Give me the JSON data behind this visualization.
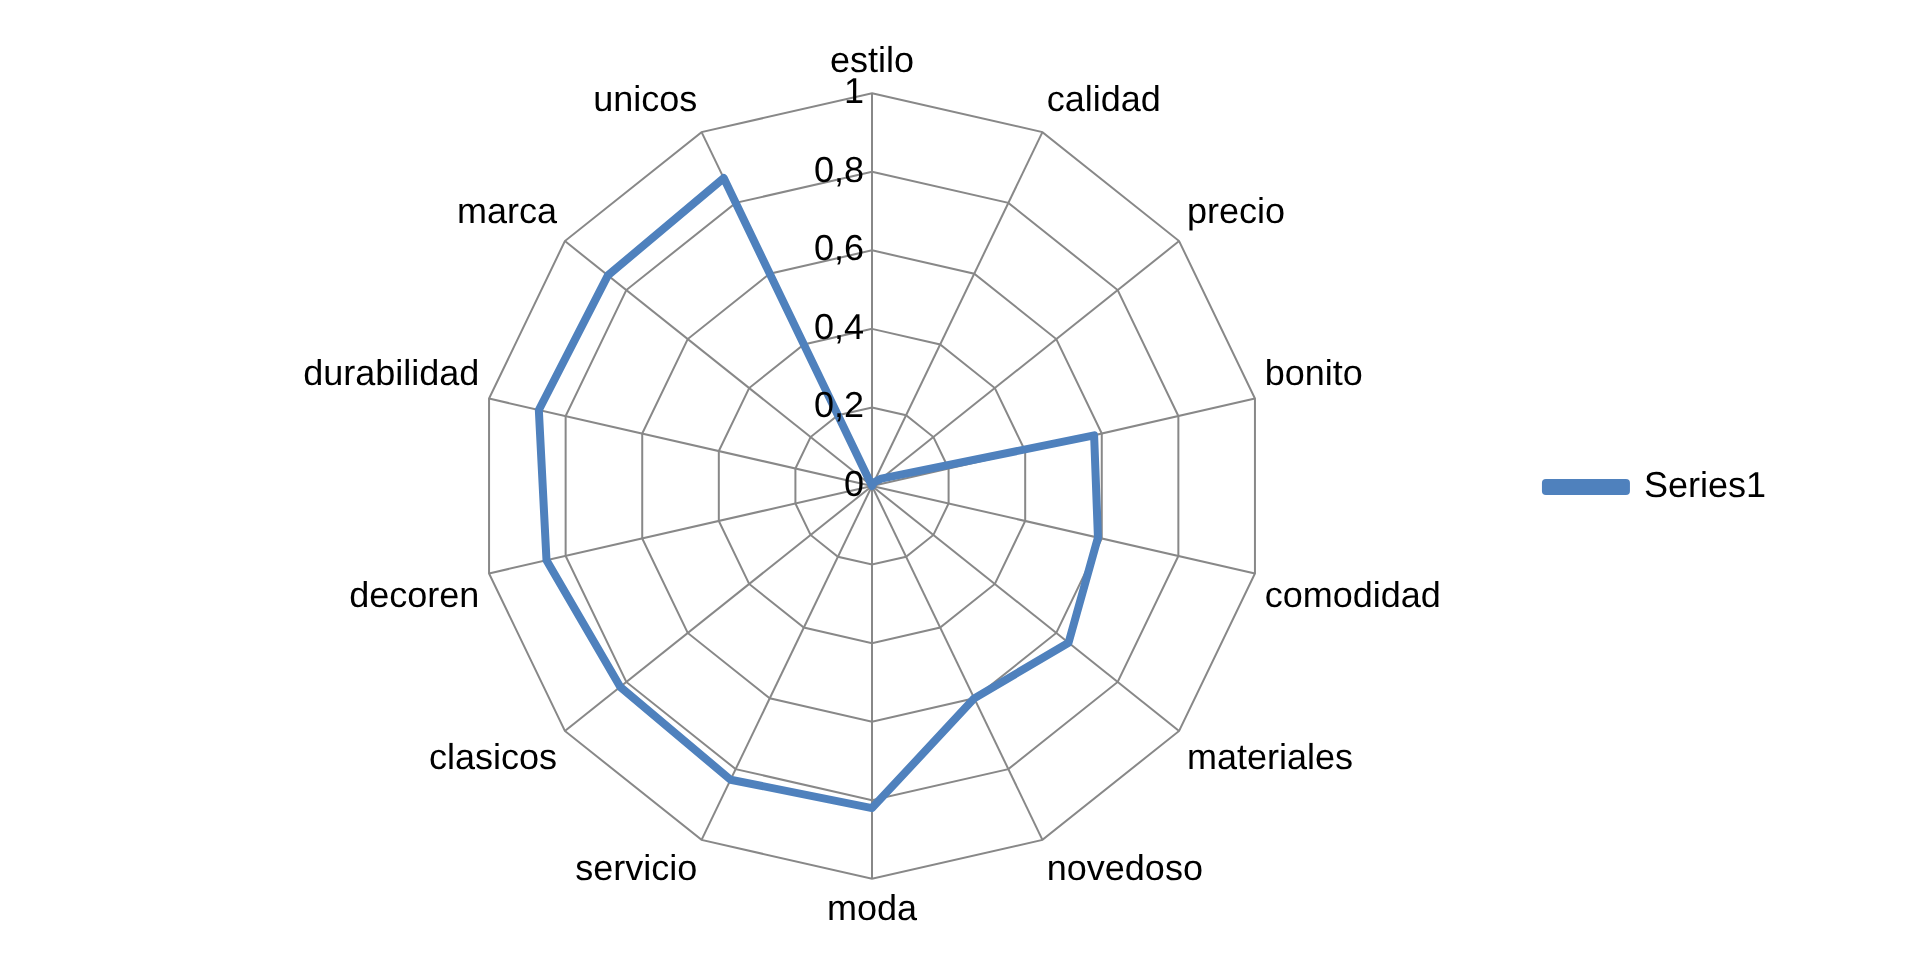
{
  "chart_data": {
    "type": "radar",
    "categories": [
      "estilo",
      "calidad",
      "precio",
      "bonito",
      "comodidad",
      "materiales",
      "novedoso",
      "moda",
      "servicio",
      "clasicos",
      "decoren",
      "durabilidad",
      "marca",
      "unicos"
    ],
    "series": [
      {
        "name": "Series1",
        "color": "#4f81bd",
        "values": [
          0,
          0.01,
          0.03,
          0.58,
          0.59,
          0.64,
          0.6,
          0.82,
          0.83,
          0.82,
          0.85,
          0.87,
          0.86,
          0.87
        ]
      }
    ],
    "ylim": [
      0,
      1
    ],
    "yticks": [
      0,
      {
        "value": 0.2,
        "label": "0,2"
      },
      {
        "value": 0.4,
        "label": "0,4"
      },
      {
        "value": 0.6,
        "label": "0,6"
      },
      {
        "value": 0.8,
        "label": "0,8"
      },
      1
    ],
    "grid": true,
    "legend": "right",
    "marker": "none",
    "line_style": "solid"
  }
}
